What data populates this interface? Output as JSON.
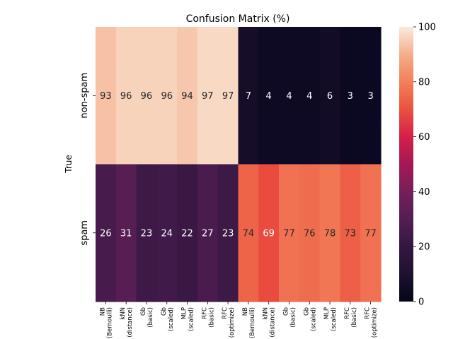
{
  "chart_data": {
    "type": "heatmap",
    "title": "Confusion Matrix (%)",
    "ylabel": "True",
    "xlabel": "",
    "row_labels": [
      "non-spam",
      "spam"
    ],
    "column_labels": [
      [
        "NB",
        "(Bernoulli)"
      ],
      [
        "kNN",
        "(distance)"
      ],
      [
        "Gb",
        "(basic)"
      ],
      [
        "Gb",
        "(scaled)"
      ],
      [
        "MLP",
        "(scaled)"
      ],
      [
        "RFC",
        "(basic)"
      ],
      [
        "RFC",
        "(optimize)"
      ],
      [
        "NB",
        "(Bernoulli)"
      ],
      [
        "kNN",
        "(distance)"
      ],
      [
        "Gb",
        "(basic)"
      ],
      [
        "Gb",
        "(scaled)"
      ],
      [
        "MLP",
        "(scaled)"
      ],
      [
        "RFC",
        "(basic)"
      ],
      [
        "RFC",
        "(optimize)"
      ]
    ],
    "values": [
      [
        93,
        96,
        96,
        96,
        94,
        97,
        97,
        7,
        4,
        4,
        4,
        6,
        3,
        3
      ],
      [
        26,
        31,
        23,
        24,
        22,
        27,
        23,
        74,
        69,
        77,
        76,
        78,
        73,
        77
      ]
    ],
    "colorbar": {
      "min": 0,
      "max": 100,
      "ticks": [
        0,
        20,
        40,
        60,
        80,
        100
      ]
    },
    "colormap": "rocket"
  }
}
